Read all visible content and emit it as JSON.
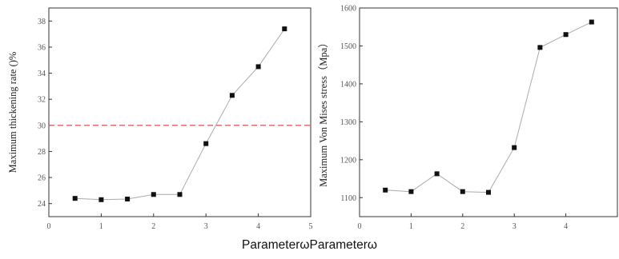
{
  "caption": "ParameterωParameterω",
  "chart_data": [
    {
      "type": "line",
      "ylabel": "Maximum thickening rate ()%",
      "xlim": [
        0,
        5
      ],
      "ylim": [
        23,
        39
      ],
      "xticks": [
        "0",
        "1",
        "2",
        "3",
        "4",
        "5"
      ],
      "yticks": [
        "24",
        "26",
        "28",
        "30",
        "32",
        "34",
        "36",
        "38"
      ],
      "reference_line": {
        "y": 30,
        "color": "#e06060",
        "style": "dashed"
      },
      "series": [
        {
          "x": [
            0.5,
            1.0,
            1.5,
            2.0,
            2.5,
            3.0,
            3.5,
            4.0,
            4.5
          ],
          "values": [
            24.4,
            24.3,
            24.35,
            24.7,
            24.7,
            28.6,
            32.3,
            34.5,
            37.4
          ]
        }
      ],
      "grid": false,
      "line_color": "#aaaaaa",
      "marker_color": "#111111"
    },
    {
      "type": "line",
      "ylabel": "Maximum Von Mises stress（Mpa）",
      "xlim": [
        0,
        5
      ],
      "ylim": [
        1050,
        1600
      ],
      "xticks": [
        "0",
        "1",
        "2",
        "3",
        "4"
      ],
      "yticks": [
        "1100",
        "1200",
        "1300",
        "1400",
        "1500",
        "1600"
      ],
      "series": [
        {
          "x": [
            0.5,
            1.0,
            1.5,
            2.0,
            2.5,
            3.0,
            3.5,
            4.0,
            4.5
          ],
          "values": [
            1120,
            1116,
            1163,
            1116,
            1114,
            1232,
            1496,
            1530,
            1563
          ]
        }
      ],
      "grid": false,
      "line_color": "#aaaaaa",
      "marker_color": "#111111"
    }
  ]
}
